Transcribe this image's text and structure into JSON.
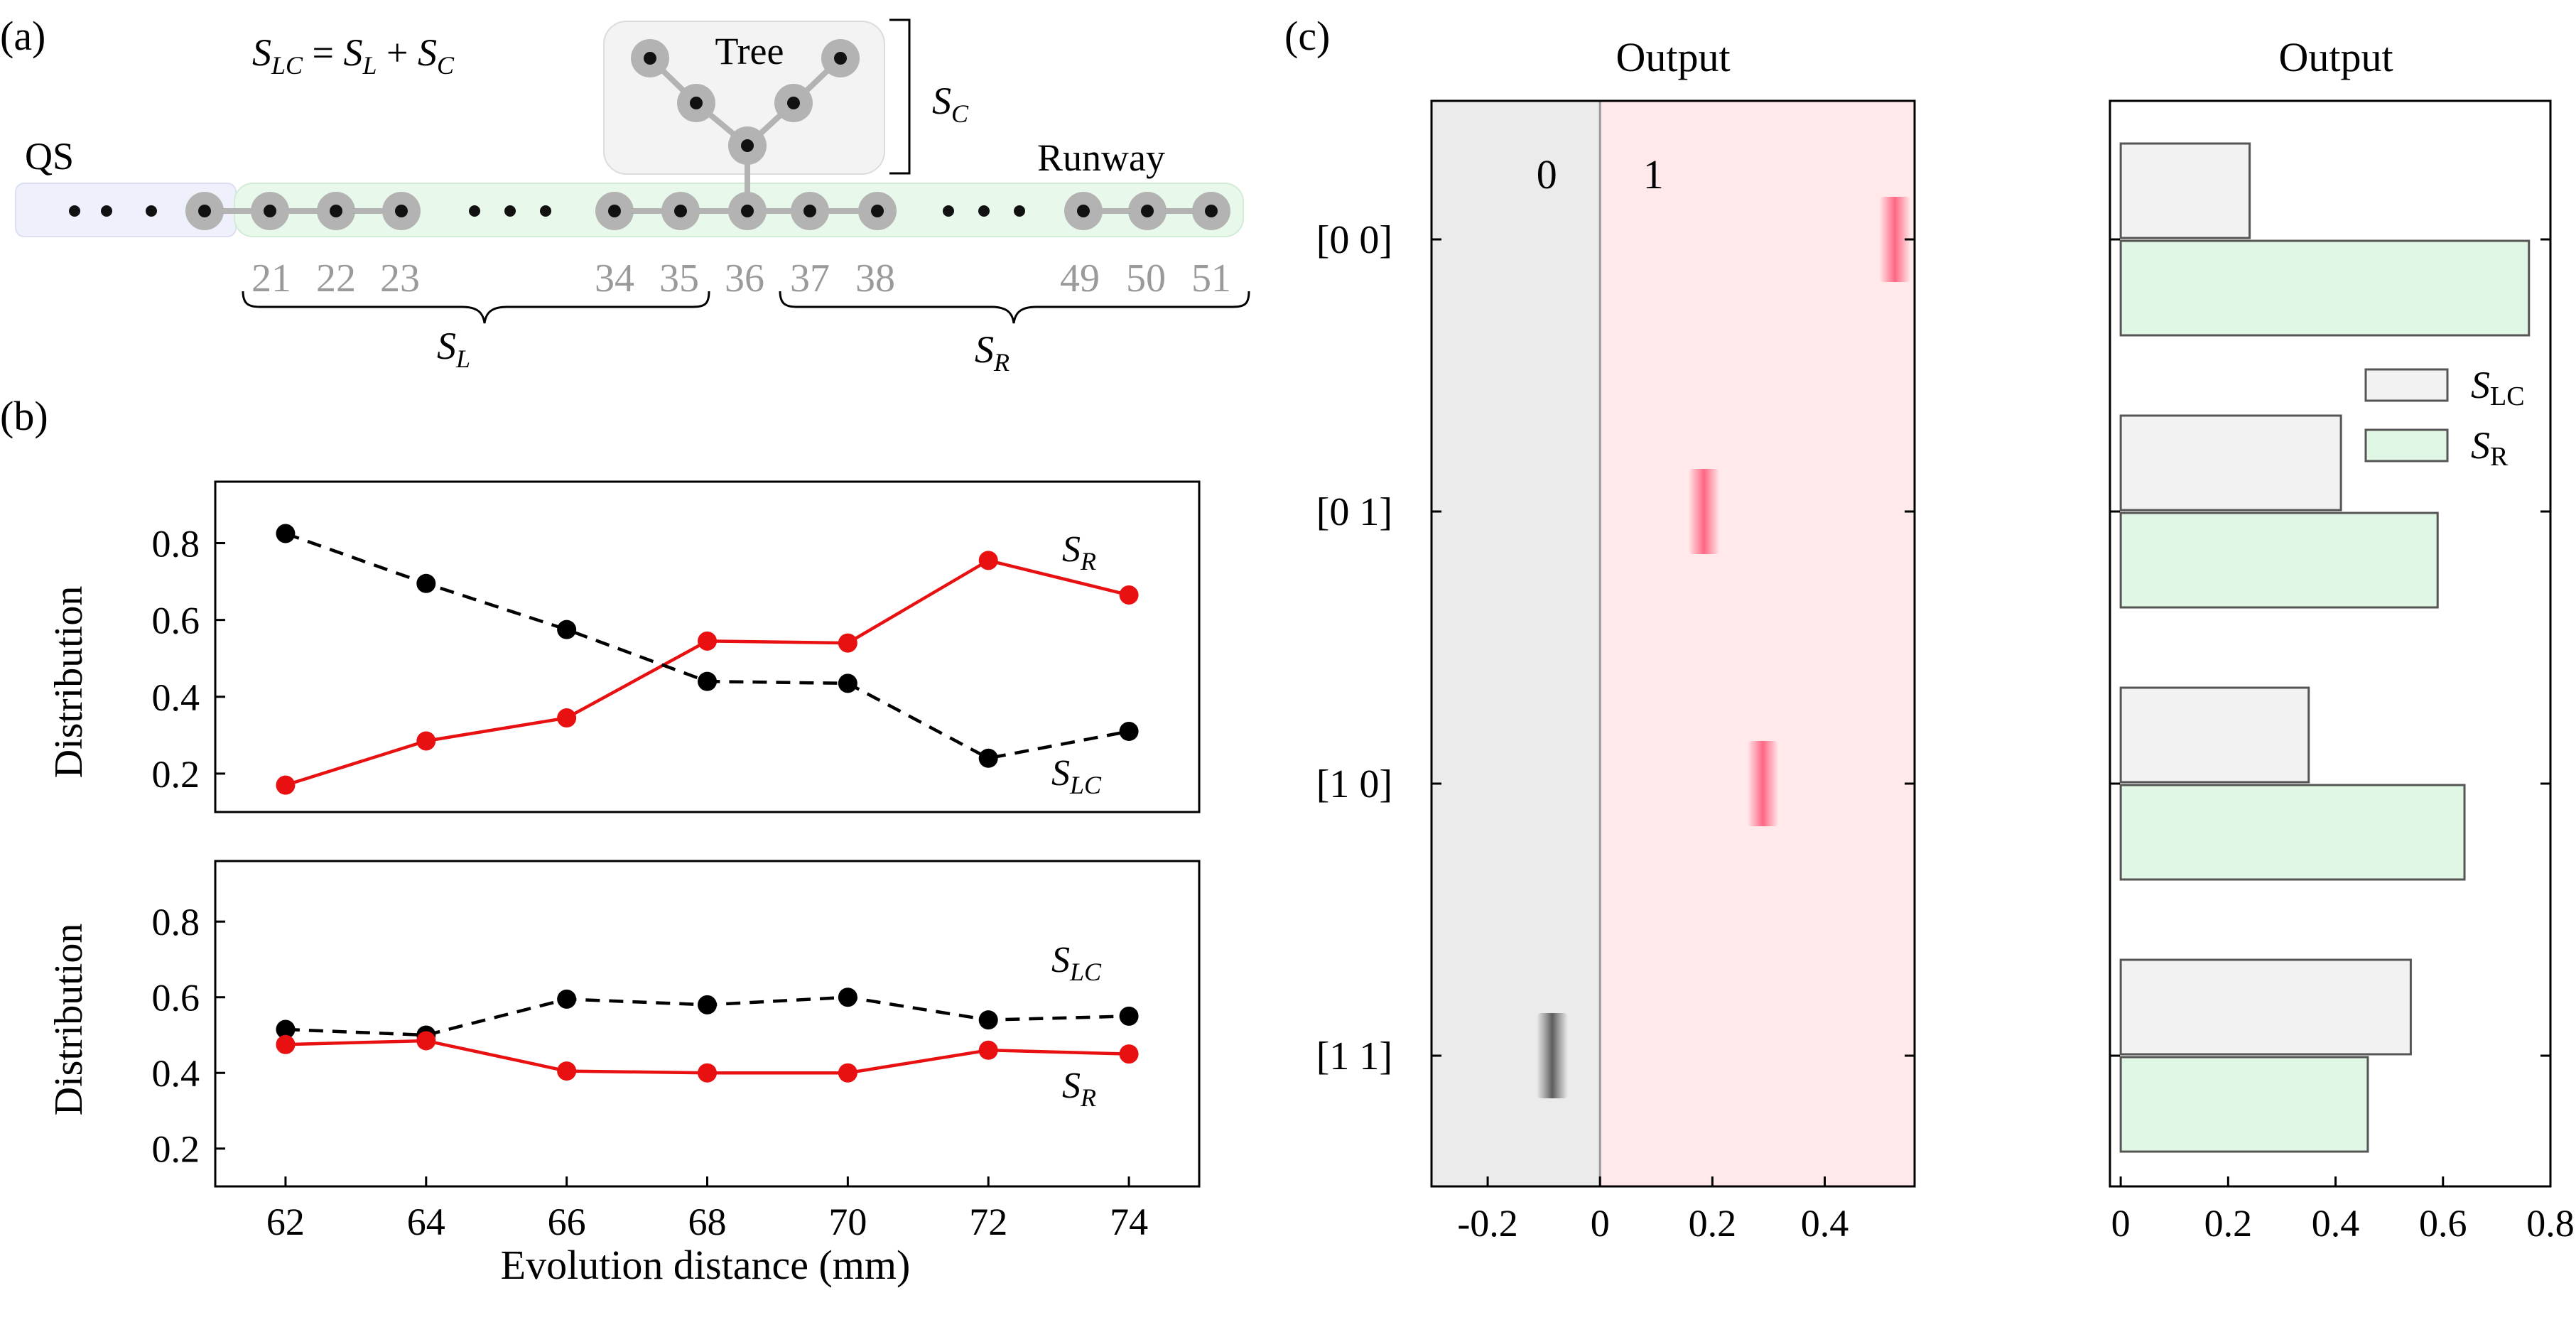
{
  "panel_labels": {
    "a": "(a)",
    "b": "(b)",
    "c": "(c)"
  },
  "schematic": {
    "equation": {
      "S": "S",
      "LC": "LC",
      "eq": " = ",
      "L": "L",
      "plus": " + ",
      "C": "C"
    },
    "tree_label": "Tree",
    "qs_label": "QS",
    "runway_label": "Runway",
    "sc_label": {
      "S": "S",
      "sub": "C"
    },
    "sl_label": {
      "S": "S",
      "sub": "L"
    },
    "sr_label": {
      "S": "S",
      "sub": "R"
    },
    "site_numbers": [
      "21",
      "22",
      "23",
      "34",
      "35",
      "36",
      "37",
      "38",
      "49",
      "50",
      "51"
    ]
  },
  "colors": {
    "sr_line": "#e81010",
    "slc_line": "#000000",
    "bar_slc": "#f2f2f2",
    "bar_sr": "#dff7e4",
    "bg_zero": "#ebebeb",
    "bg_one": "#ffe9ea",
    "blob_red": "#ff5f7f",
    "blob_gray": "#777777"
  },
  "chart_data": [
    {
      "id": "b-top",
      "type": "line",
      "x": [
        62,
        64,
        66,
        68,
        70,
        72,
        74
      ],
      "xlim": [
        61,
        75
      ],
      "ylim": [
        0.1,
        0.96
      ],
      "yticks": [
        "0.2",
        "0.4",
        "0.6",
        "0.8"
      ],
      "ylabel": "Distribution",
      "series": [
        {
          "name": "S_R",
          "label_main": "S",
          "label_sub": "R",
          "style": "solid",
          "values": [
            0.17,
            0.285,
            0.345,
            0.545,
            0.54,
            0.755,
            0.665
          ]
        },
        {
          "name": "S_LC",
          "label_main": "S",
          "label_sub": "LC",
          "style": "dashed",
          "values": [
            0.825,
            0.695,
            0.575,
            0.44,
            0.435,
            0.24,
            0.31
          ]
        }
      ]
    },
    {
      "id": "b-bottom",
      "type": "line",
      "x": [
        62,
        64,
        66,
        68,
        70,
        72,
        74
      ],
      "xlim": [
        61,
        75
      ],
      "ylim": [
        0.1,
        0.96
      ],
      "xticks": [
        "62",
        "64",
        "66",
        "68",
        "70",
        "72",
        "74"
      ],
      "yticks": [
        "0.2",
        "0.4",
        "0.6",
        "0.8"
      ],
      "ylabel": "Distribution",
      "xlabel": "Evolution distance (mm)",
      "series": [
        {
          "name": "S_LC",
          "label_main": "S",
          "label_sub": "LC",
          "style": "dashed",
          "values": [
            0.515,
            0.5,
            0.595,
            0.58,
            0.6,
            0.54,
            0.55
          ]
        },
        {
          "name": "S_R",
          "label_main": "S",
          "label_sub": "R",
          "style": "solid",
          "values": [
            0.475,
            0.485,
            0.405,
            0.4,
            0.4,
            0.46,
            0.45
          ]
        }
      ]
    },
    {
      "id": "c-left",
      "type": "scatter",
      "title": "Output",
      "xlim": [
        -0.3,
        0.56
      ],
      "xticks": [
        "-0.2",
        "0",
        "0.2",
        "0.4"
      ],
      "categories": [
        "[0 0]",
        "[0 1]",
        "[1 0]",
        "[1 1]"
      ],
      "region_labels": [
        "0",
        "1"
      ],
      "values": [
        0.525,
        0.185,
        0.29,
        -0.085
      ]
    },
    {
      "id": "c-right",
      "type": "bar",
      "title": "Output",
      "xlim": [
        -0.02,
        0.8
      ],
      "xticks": [
        "0",
        "0.2",
        "0.4",
        "0.6",
        "0.8"
      ],
      "categories": [
        "[0 0]",
        "[0 1]",
        "[1 0]",
        "[1 1]"
      ],
      "series": [
        {
          "name": "S_LC",
          "label_main": "S",
          "label_sub": "LC",
          "values": [
            0.24,
            0.41,
            0.35,
            0.54
          ]
        },
        {
          "name": "S_R",
          "label_main": "S",
          "label_sub": "R",
          "values": [
            0.76,
            0.59,
            0.64,
            0.46
          ]
        }
      ]
    }
  ]
}
